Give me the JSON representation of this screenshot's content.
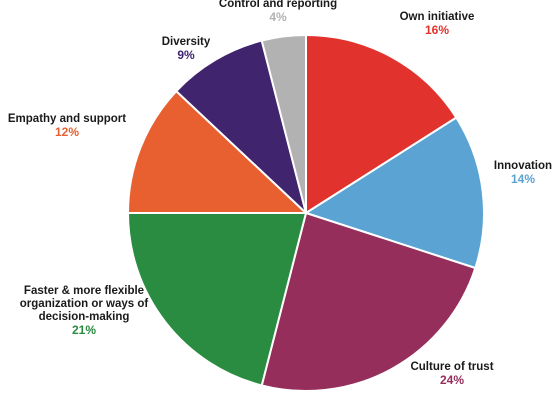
{
  "chart_data": {
    "type": "pie",
    "slices": [
      {
        "label": [
          "Own initiative"
        ],
        "value": 16,
        "pct_text": "16%",
        "color": "#e2322d"
      },
      {
        "label": [
          "Innovation"
        ],
        "value": 14,
        "pct_text": "14%",
        "color": "#5aa3d3"
      },
      {
        "label": [
          "Culture of trust"
        ],
        "value": 24,
        "pct_text": "24%",
        "color": "#952e5a"
      },
      {
        "label": [
          "Faster & more flexible",
          "organization or ways of",
          "decision-making"
        ],
        "value": 21,
        "pct_text": "21%",
        "color": "#298c41"
      },
      {
        "label": [
          "Empathy and support"
        ],
        "value": 12,
        "pct_text": "12%",
        "color": "#e85f30"
      },
      {
        "label": [
          "Diversity"
        ],
        "value": 9,
        "pct_text": "9%",
        "color": "#40246e"
      },
      {
        "label": [
          "Control and reporting"
        ],
        "value": 4,
        "pct_text": "4%",
        "color": "#b2b2b2"
      }
    ],
    "pct_colors": [
      "#e2322d",
      "#5aa3d3",
      "#952e5a",
      "#298c41",
      "#e85f30",
      "#40246e",
      "#b2b2b2"
    ]
  }
}
